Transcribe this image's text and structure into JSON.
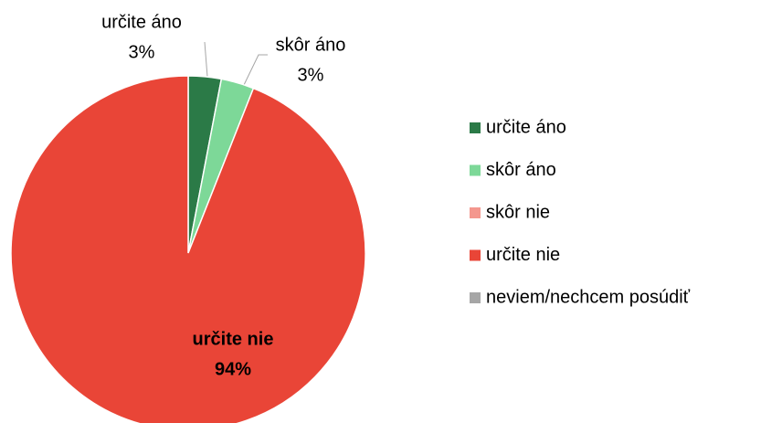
{
  "chart_data": {
    "type": "pie",
    "categories": [
      "určite áno",
      "skôr áno",
      "skôr nie",
      "určite nie",
      "neviem/nechcem posúdiť"
    ],
    "values": [
      3,
      3,
      0,
      94,
      0
    ],
    "value_labels": [
      "3%",
      "3%",
      null,
      "94%",
      null
    ],
    "colors": [
      "#2b7a47",
      "#7dd898",
      "#f4978e",
      "#e94537",
      "#a6a6a6"
    ],
    "legend": "right"
  }
}
